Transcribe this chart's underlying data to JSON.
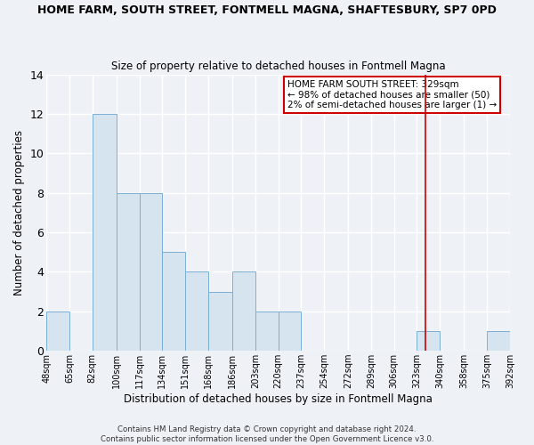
{
  "title": "HOME FARM, SOUTH STREET, FONTMELL MAGNA, SHAFTESBURY, SP7 0PD",
  "subtitle": "Size of property relative to detached houses in Fontmell Magna",
  "xlabel": "Distribution of detached houses by size in Fontmell Magna",
  "ylabel": "Number of detached properties",
  "bin_edges": [
    48,
    65,
    82,
    100,
    117,
    134,
    151,
    168,
    186,
    203,
    220,
    237,
    254,
    272,
    289,
    306,
    323,
    340,
    358,
    375,
    392
  ],
  "bin_labels": [
    "48sqm",
    "65sqm",
    "82sqm",
    "100sqm",
    "117sqm",
    "134sqm",
    "151sqm",
    "168sqm",
    "186sqm",
    "203sqm",
    "220sqm",
    "237sqm",
    "254sqm",
    "272sqm",
    "289sqm",
    "306sqm",
    "323sqm",
    "340sqm",
    "358sqm",
    "375sqm",
    "392sqm"
  ],
  "counts": [
    2,
    0,
    12,
    8,
    8,
    5,
    4,
    3,
    4,
    2,
    2,
    0,
    0,
    0,
    0,
    0,
    1,
    0,
    0,
    1
  ],
  "bar_color": "#d6e4f0",
  "bar_edge_color": "#7aafd4",
  "ylim": [
    0,
    14
  ],
  "yticks": [
    0,
    2,
    4,
    6,
    8,
    10,
    12,
    14
  ],
  "reference_line_x": 329,
  "reference_line_color": "#cc0000",
  "legend_title": "HOME FARM SOUTH STREET: 329sqm",
  "legend_line1": "← 98% of detached houses are smaller (50)",
  "legend_line2": "2% of semi-detached houses are larger (1) →",
  "legend_box_color": "#cc0000",
  "footer_line1": "Contains HM Land Registry data © Crown copyright and database right 2024.",
  "footer_line2": "Contains public sector information licensed under the Open Government Licence v3.0.",
  "bg_color": "#eef2f7",
  "plot_bg_color": "#eef2f7",
  "grid_color": "#ffffff"
}
